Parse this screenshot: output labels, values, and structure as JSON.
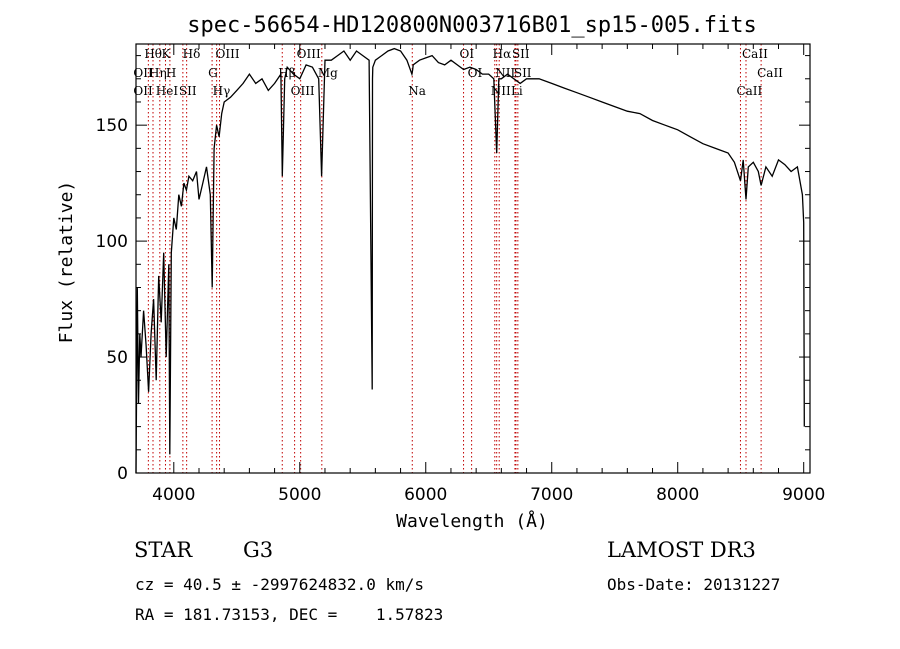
{
  "chart_data": {
    "type": "line",
    "title": "spec-56654-HD120800N003716B01_sp15-005.fits",
    "xlabel": "Wavelength (Å)",
    "ylabel": "Flux (relative)",
    "xlim": [
      3700,
      9050
    ],
    "ylim": [
      0,
      185
    ],
    "x_ticks": [
      4000,
      5000,
      6000,
      7000,
      8000,
      9000
    ],
    "y_ticks": [
      0,
      50,
      100,
      150
    ],
    "spectrum": {
      "name": "flux",
      "x": [
        3700,
        3710,
        3720,
        3730,
        3740,
        3760,
        3780,
        3800,
        3820,
        3840,
        3860,
        3880,
        3900,
        3920,
        3940,
        3960,
        3968,
        3980,
        4000,
        4020,
        4040,
        4060,
        4080,
        4100,
        4120,
        4150,
        4180,
        4200,
        4230,
        4260,
        4290,
        4305,
        4320,
        4340,
        4360,
        4380,
        4400,
        4450,
        4500,
        4550,
        4600,
        4650,
        4700,
        4750,
        4800,
        4850,
        4861,
        4880,
        4900,
        4950,
        5000,
        5050,
        5100,
        5150,
        5173,
        5200,
        5250,
        5300,
        5350,
        5400,
        5450,
        5500,
        5550,
        5575,
        5577,
        5580,
        5600,
        5650,
        5700,
        5750,
        5800,
        5850,
        5890,
        5896,
        5900,
        5950,
        6000,
        6050,
        6100,
        6150,
        6200,
        6250,
        6300,
        6350,
        6400,
        6450,
        6500,
        6540,
        6563,
        6580,
        6600,
        6650,
        6700,
        6750,
        6800,
        6900,
        7000,
        7100,
        7200,
        7300,
        7400,
        7500,
        7600,
        7700,
        7800,
        7900,
        8000,
        8100,
        8200,
        8300,
        8400,
        8450,
        8498,
        8520,
        8542,
        8560,
        8600,
        8640,
        8662,
        8700,
        8750,
        8800,
        8850,
        8900,
        8950,
        8990,
        9000,
        9005
      ],
      "y": [
        0,
        80,
        30,
        60,
        50,
        70,
        55,
        35,
        60,
        75,
        40,
        85,
        65,
        95,
        50,
        90,
        8,
        95,
        110,
        105,
        120,
        115,
        125,
        122,
        128,
        126,
        130,
        118,
        125,
        132,
        120,
        80,
        140,
        150,
        145,
        155,
        160,
        162,
        165,
        168,
        172,
        168,
        170,
        165,
        168,
        172,
        128,
        170,
        175,
        172,
        170,
        176,
        175,
        170,
        128,
        178,
        178,
        180,
        182,
        178,
        182,
        180,
        178,
        36,
        170,
        175,
        178,
        180,
        182,
        183,
        182,
        178,
        172,
        174,
        176,
        178,
        179,
        180,
        177,
        176,
        178,
        176,
        174,
        175,
        174,
        172,
        172,
        170,
        138,
        170,
        170,
        172,
        170,
        168,
        170,
        170,
        168,
        166,
        164,
        162,
        160,
        158,
        156,
        155,
        152,
        150,
        148,
        145,
        142,
        140,
        138,
        134,
        126,
        135,
        118,
        132,
        134,
        130,
        124,
        132,
        128,
        135,
        133,
        130,
        132,
        120,
        108,
        20
      ]
    },
    "line_markers": [
      {
        "x": 3798,
        "label": "Hθ"
      },
      {
        "x": 3835,
        "label": "Hη"
      },
      {
        "x": 3889,
        "label": "HeI"
      },
      {
        "x": 3934,
        "label": "K"
      },
      {
        "x": 3969,
        "label": "H"
      },
      {
        "x": 4072,
        "label": "SII"
      },
      {
        "x": 4102,
        "label": "Hδ"
      },
      {
        "x": 4304,
        "label": "G"
      },
      {
        "x": 4340,
        "label": "Hγ"
      },
      {
        "x": 4363,
        "label": "OIII"
      },
      {
        "x": 4861,
        "label": "Hβ"
      },
      {
        "x": 4959,
        "label": "OIII"
      },
      {
        "x": 5007,
        "label": "OIII"
      },
      {
        "x": 5175,
        "label": "Mg"
      },
      {
        "x": 5893,
        "label": "Na"
      },
      {
        "x": 6300,
        "label": "OI"
      },
      {
        "x": 6364,
        "label": "OI"
      },
      {
        "x": 6548,
        "label": "NII"
      },
      {
        "x": 6563,
        "label": "Hα"
      },
      {
        "x": 6583,
        "label": "NII"
      },
      {
        "x": 6708,
        "label": "Li"
      },
      {
        "x": 6716,
        "label": "SII"
      },
      {
        "x": 6731,
        "label": "SII"
      },
      {
        "x": 8498,
        "label": "CaII"
      },
      {
        "x": 8542,
        "label": "CaII"
      },
      {
        "x": 8662,
        "label": "CaII"
      }
    ],
    "oii_marker": {
      "x": 3727,
      "label": "OII"
    }
  },
  "info": {
    "object_class": "STAR",
    "subclass": "G3",
    "survey": "LAMOST DR3",
    "cz": "cz = 40.5 ± -2997624832.0 km/s",
    "obs_date": "Obs-Date: 20131227",
    "coords": "RA = 181.73153, DEC =    1.57823"
  }
}
